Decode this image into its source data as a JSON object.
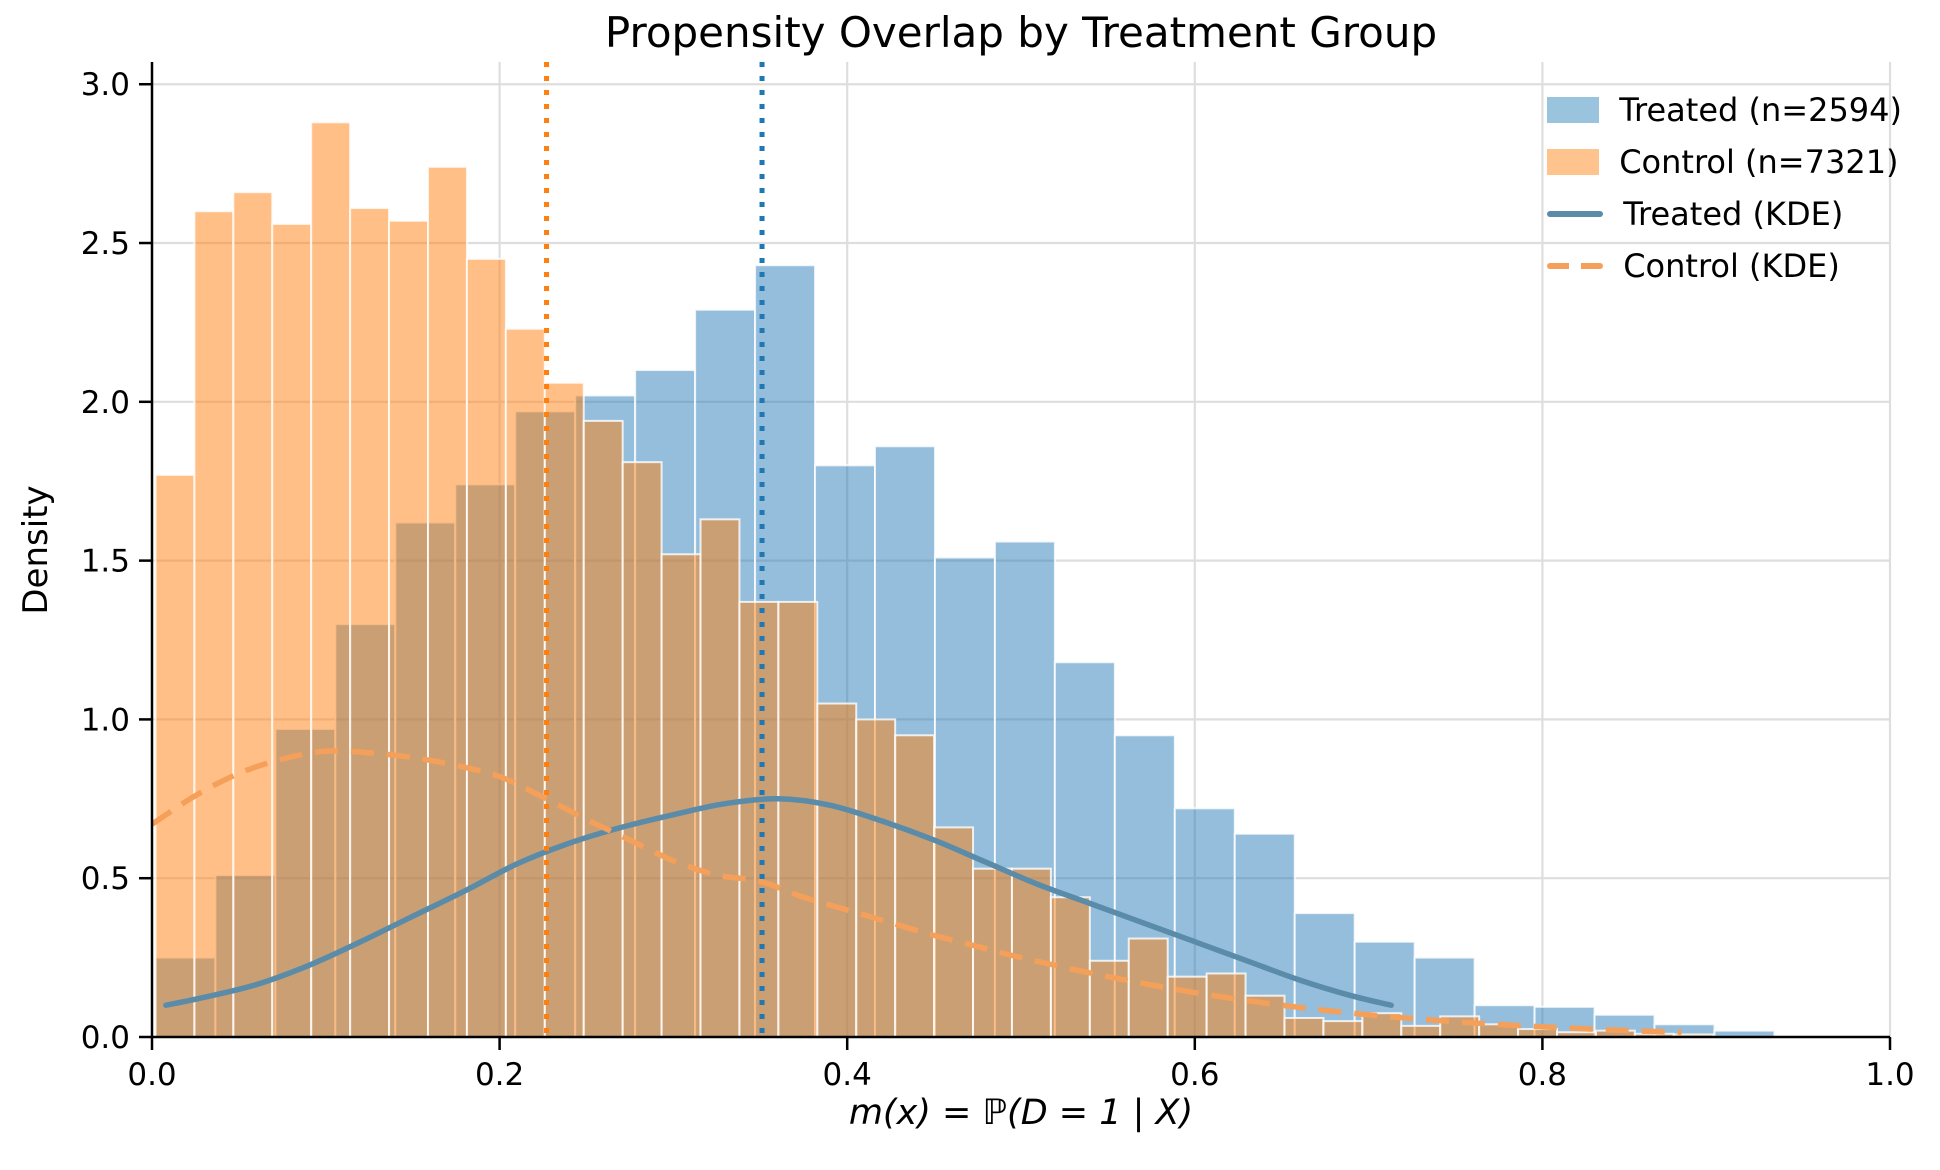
{
  "figure": {
    "background": "#ffffff"
  },
  "chart_data": {
    "type": "histogram-density-overlay",
    "title": "Propensity Overlap by Treatment Group",
    "xlabel": "m(x) = ℙ(D = 1 | X)",
    "ylabel": "Density",
    "xlim": [
      0.0,
      1.0
    ],
    "ylim": [
      0.0,
      3.07
    ],
    "grid": true,
    "grid_color": "#dedede",
    "x_ticks": [
      0.0,
      0.2,
      0.4,
      0.6,
      0.8,
      1.0
    ],
    "x_tick_labels": [
      "0.0",
      "0.2",
      "0.4",
      "0.6",
      "0.8",
      "1.0"
    ],
    "y_ticks": [
      0.0,
      0.5,
      1.0,
      1.5,
      2.0,
      2.5,
      3.0
    ],
    "y_tick_labels": [
      "0.0",
      "0.5",
      "1.0",
      "1.5",
      "2.0",
      "2.5",
      "3.0"
    ],
    "legend": {
      "position": "upper right",
      "entries": [
        {
          "label": "Treated (n=2594)",
          "type": "patch",
          "color": "#9ac4dd"
        },
        {
          "label": "Control (n=7321)",
          "type": "patch",
          "color": "#ffc48e"
        },
        {
          "label": "Treated (KDE)",
          "type": "line",
          "style": "solid",
          "color": "#5a8ca9"
        },
        {
          "label": "Control (KDE)",
          "type": "line",
          "style": "dashed",
          "color": "#f5a05a"
        }
      ]
    },
    "series": [
      {
        "name": "treated_histogram",
        "legend_label": "Treated (n=2594)",
        "kind": "bar",
        "color": "#1f77b4",
        "fill_opacity": 0.48,
        "bin_start": 0.002,
        "bin_width": 0.0345,
        "heights": [
          0.25,
          0.51,
          0.97,
          1.3,
          1.62,
          1.74,
          1.97,
          2.02,
          2.1,
          2.29,
          2.43,
          1.8,
          1.86,
          1.51,
          1.56,
          1.18,
          0.95,
          0.72,
          0.64,
          0.39,
          0.3,
          0.25,
          0.1,
          0.095,
          0.07,
          0.04,
          0.02
        ]
      },
      {
        "name": "control_histogram",
        "legend_label": "Control (n=7321)",
        "kind": "bar",
        "color": "#ff7f0e",
        "fill_opacity": 0.5,
        "bin_start": 0.002,
        "bin_width": 0.0224,
        "heights": [
          1.77,
          2.6,
          2.66,
          2.56,
          2.88,
          2.61,
          2.57,
          2.74,
          2.45,
          2.23,
          2.06,
          1.94,
          1.81,
          1.52,
          1.63,
          1.37,
          1.37,
          1.05,
          1.0,
          0.95,
          0.66,
          0.53,
          0.53,
          0.44,
          0.24,
          0.31,
          0.19,
          0.2,
          0.13,
          0.06,
          0.05,
          0.075,
          0.035,
          0.065,
          0.04,
          0.025,
          0.015,
          0.02,
          0.01,
          0.008
        ]
      },
      {
        "name": "treated_kde",
        "legend_label": "Treated (KDE)",
        "kind": "line",
        "style": "solid",
        "color": "#5a8ca9",
        "x": [
          0.008,
          0.03,
          0.06,
          0.09,
          0.12,
          0.15,
          0.18,
          0.21,
          0.24,
          0.27,
          0.3,
          0.33,
          0.36,
          0.39,
          0.42,
          0.45,
          0.48,
          0.51,
          0.54,
          0.57,
          0.6,
          0.63,
          0.66,
          0.69,
          0.713
        ],
        "y": [
          0.1,
          0.125,
          0.165,
          0.225,
          0.3,
          0.38,
          0.46,
          0.545,
          0.61,
          0.66,
          0.7,
          0.735,
          0.75,
          0.73,
          0.68,
          0.62,
          0.55,
          0.48,
          0.42,
          0.36,
          0.3,
          0.24,
          0.18,
          0.13,
          0.1
        ]
      },
      {
        "name": "control_kde",
        "legend_label": "Control (KDE)",
        "kind": "line",
        "style": "dashed",
        "color": "#f5a05a",
        "x": [
          0.0,
          0.025,
          0.05,
          0.075,
          0.1,
          0.125,
          0.15,
          0.175,
          0.2,
          0.225,
          0.25,
          0.275,
          0.3,
          0.325,
          0.35,
          0.375,
          0.4,
          0.425,
          0.45,
          0.475,
          0.5,
          0.55,
          0.6,
          0.65,
          0.7,
          0.75,
          0.8,
          0.85,
          0.88
        ],
        "y": [
          0.67,
          0.76,
          0.83,
          0.875,
          0.9,
          0.895,
          0.88,
          0.855,
          0.82,
          0.755,
          0.685,
          0.62,
          0.555,
          0.51,
          0.49,
          0.44,
          0.4,
          0.36,
          0.32,
          0.285,
          0.25,
          0.19,
          0.14,
          0.1,
          0.07,
          0.048,
          0.032,
          0.02,
          0.015
        ]
      }
    ],
    "vlines": [
      {
        "name": "control_mean_marker",
        "x": 0.227,
        "color": "#ff7f0e",
        "style": "dotted"
      },
      {
        "name": "treated_mean_marker",
        "x": 0.351,
        "color": "#1f77b4",
        "style": "dotted"
      }
    ]
  }
}
